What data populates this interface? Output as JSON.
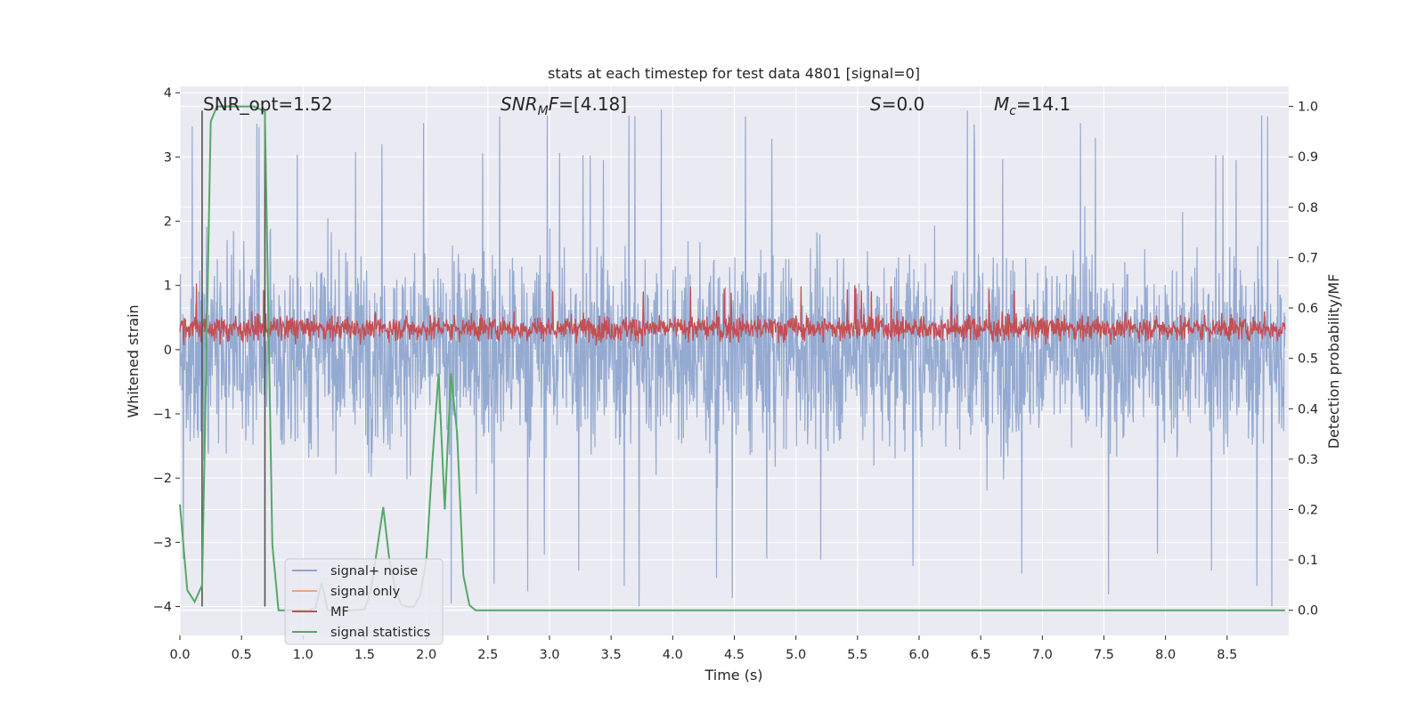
{
  "chart_data": {
    "type": "line",
    "title": "stats at each timestep for test data 4801 [signal=0]",
    "xlabel": "Time (s)",
    "ylabel": "Whitened strain",
    "y2label": "Detection probability/MF",
    "xlim": [
      0,
      9.0
    ],
    "ylim": [
      -4.45,
      4.1
    ],
    "y2lim": [
      -0.05,
      1.04
    ],
    "grid": true,
    "legend_position": "lower-left",
    "x_ticks": [
      "0.0",
      "0.5",
      "1.0",
      "1.5",
      "2.0",
      "2.5",
      "3.0",
      "3.5",
      "4.0",
      "4.5",
      "5.0",
      "5.5",
      "6.0",
      "6.5",
      "7.0",
      "7.5",
      "8.0",
      "8.5"
    ],
    "y_ticks": [
      "−4",
      "−3",
      "−2",
      "−1",
      "0",
      "1",
      "2",
      "3",
      "4"
    ],
    "y2_ticks": [
      "0.0",
      "0.1",
      "0.2",
      "0.3",
      "0.4",
      "0.5",
      "0.6",
      "0.7",
      "0.8",
      "0.9",
      "1.0"
    ],
    "annotations": {
      "snr_opt": "SNR_opt=1.52",
      "snr_mf_sym": "SNR",
      "snr_mf_sub": "M",
      "snr_mf_sym2": "F",
      "snr_mf_value": "=[4.18]",
      "s_sym": "S",
      "s_value": "=0.0",
      "mc_sym": "M",
      "mc_sub": "c",
      "mc_value": "=14.1"
    },
    "vertical_markers_x": [
      0.18,
      0.69
    ],
    "series": [
      {
        "name": "signal+ noise",
        "color": "#8fa6cf",
        "noise_band": [
          -2.0,
          2.3
        ],
        "extremes": [
          -4.1,
          3.8
        ]
      },
      {
        "name": "signal only",
        "color": "#e8a67f",
        "values": []
      },
      {
        "name": "MF",
        "color": "#c44e52",
        "band_y2": [
          0.52,
          0.6
        ],
        "extremes_y2": [
          0.5,
          0.65
        ]
      },
      {
        "name": "signal statistics",
        "color": "#55a868",
        "x": [
          0.0,
          0.06,
          0.12,
          0.18,
          0.25,
          0.3,
          0.4,
          0.5,
          0.6,
          0.69,
          0.75,
          0.8,
          0.85,
          0.9,
          1.0,
          1.05,
          1.1,
          1.15,
          1.2,
          1.3,
          1.4,
          1.5,
          1.55,
          1.6,
          1.65,
          1.7,
          1.75,
          1.8,
          1.85,
          1.9,
          1.95,
          2.0,
          2.05,
          2.1,
          2.15,
          2.2,
          2.25,
          2.3,
          2.35,
          2.4,
          2.45,
          2.5,
          3.0,
          4.0,
          5.0,
          6.0,
          7.0,
          8.0,
          8.97
        ],
        "values": [
          0.21,
          0.04,
          0.017,
          0.05,
          0.97,
          1.0,
          1.0,
          1.0,
          1.0,
          0.99,
          0.13,
          0.0,
          0.0,
          0.0,
          0.0,
          0.0,
          0.005,
          0.055,
          0.0,
          0.0,
          0.0,
          0.002,
          0.04,
          0.12,
          0.205,
          0.1,
          0.04,
          0.01,
          0.007,
          0.007,
          0.03,
          0.1,
          0.3,
          0.47,
          0.2,
          0.47,
          0.35,
          0.07,
          0.01,
          0.0,
          0.0,
          0.0,
          0.0,
          0.0,
          0.0,
          0.0,
          0.0,
          0.0,
          0.0
        ]
      }
    ]
  }
}
